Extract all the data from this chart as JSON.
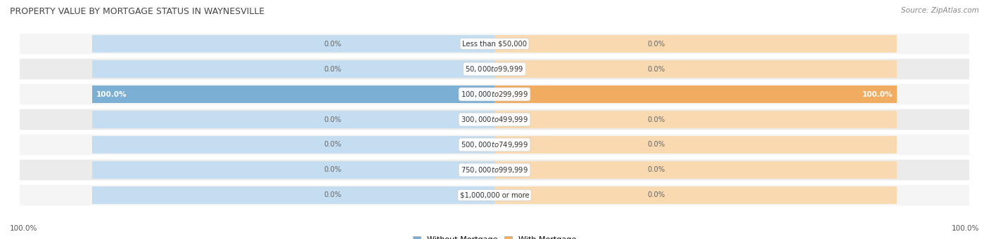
{
  "title": "PROPERTY VALUE BY MORTGAGE STATUS IN WAYNESVILLE",
  "source": "Source: ZipAtlas.com",
  "categories": [
    "Less than $50,000",
    "$50,000 to $99,999",
    "$100,000 to $299,999",
    "$300,000 to $499,999",
    "$500,000 to $749,999",
    "$750,000 to $999,999",
    "$1,000,000 or more"
  ],
  "without_mortgage": [
    0.0,
    0.0,
    100.0,
    0.0,
    0.0,
    0.0,
    0.0
  ],
  "with_mortgage": [
    0.0,
    0.0,
    100.0,
    0.0,
    0.0,
    0.0,
    0.0
  ],
  "without_mortgage_color": "#7bafd4",
  "without_mortgage_bg": "#c5ddf0",
  "with_mortgage_color": "#f0ad62",
  "with_mortgage_bg": "#f8d9b0",
  "row_bg_even": "#f2f2f2",
  "row_bg_odd": "#e8e8e8",
  "label_color": "#555555",
  "title_color": "#444444",
  "max_value": 100.0,
  "figsize": [
    14.06,
    3.41
  ],
  "dpi": 100
}
